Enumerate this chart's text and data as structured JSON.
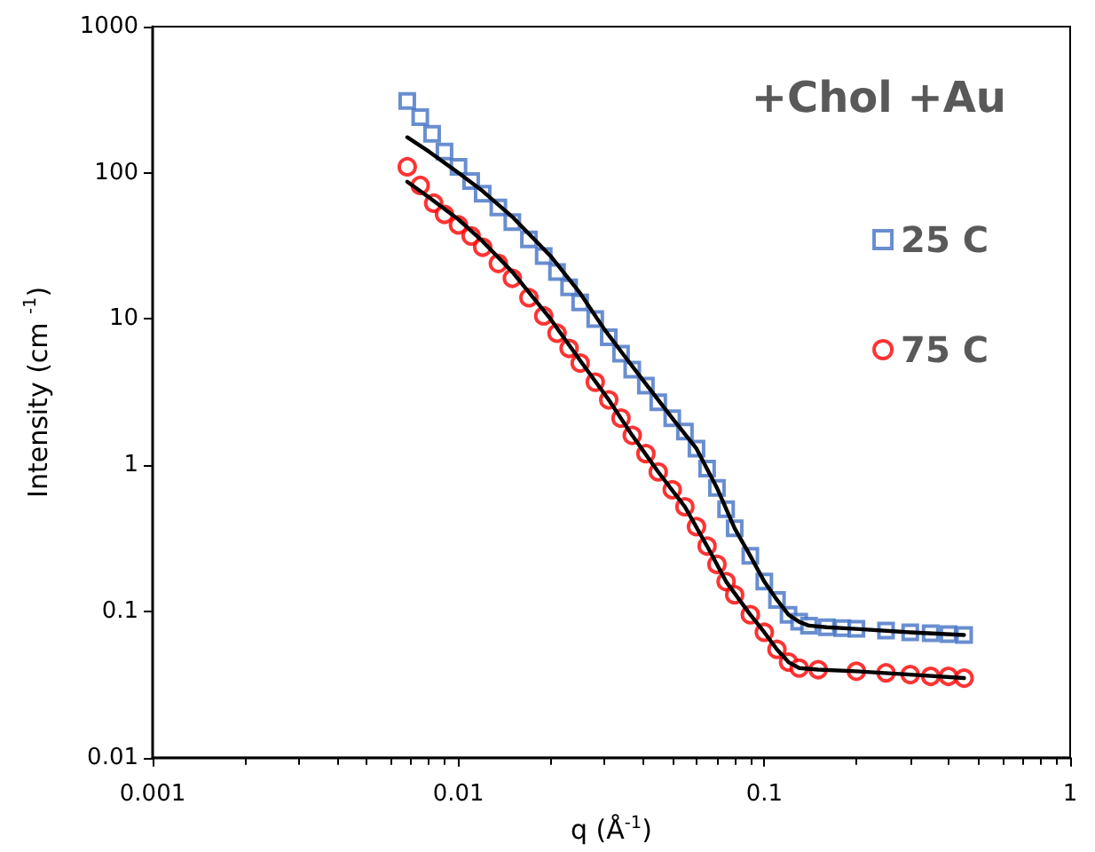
{
  "chart_data": {
    "type": "scatter",
    "xlabel": "q (Å$^{-1}$)",
    "ylabel": "Intensity (cm $^{-1}$)",
    "legend_title": "+Chol +Au",
    "log": "xy",
    "grid": false,
    "legend": "top right",
    "xlim": [
      0.001,
      1
    ],
    "xticks": [
      0.001,
      0.01,
      0.1,
      1
    ],
    "ylim": [
      0.01,
      1000
    ],
    "yticks": [
      0.01,
      0.1,
      1,
      10,
      100,
      1000
    ],
    "series": [
      {
        "name": "25 C",
        "marker": "square",
        "color": "#4472c4",
        "x": [
          0.0068,
          0.0075,
          0.0082,
          0.009,
          0.01,
          0.011,
          0.012,
          0.0135,
          0.015,
          0.017,
          0.019,
          0.021,
          0.023,
          0.025,
          0.028,
          0.031,
          0.034,
          0.037,
          0.041,
          0.045,
          0.05,
          0.055,
          0.06,
          0.065,
          0.07,
          0.075,
          0.08,
          0.09,
          0.1,
          0.11,
          0.12,
          0.13,
          0.14,
          0.16,
          0.18,
          0.2,
          0.25,
          0.3,
          0.35,
          0.4,
          0.45
        ],
        "values": [
          310,
          240,
          185,
          140,
          110,
          88,
          72,
          58,
          46,
          35,
          27,
          21,
          16.5,
          13,
          10,
          7.5,
          5.8,
          4.5,
          3.5,
          2.7,
          2.1,
          1.7,
          1.3,
          0.95,
          0.7,
          0.5,
          0.37,
          0.24,
          0.16,
          0.12,
          0.095,
          0.085,
          0.08,
          0.078,
          0.077,
          0.076,
          0.074,
          0.072,
          0.071,
          0.07,
          0.069
        ]
      },
      {
        "name": "75 C",
        "marker": "circle",
        "color": "#ff0000",
        "x": [
          0.0068,
          0.0075,
          0.0083,
          0.009,
          0.01,
          0.011,
          0.012,
          0.0135,
          0.015,
          0.017,
          0.019,
          0.021,
          0.023,
          0.025,
          0.028,
          0.031,
          0.034,
          0.037,
          0.041,
          0.045,
          0.05,
          0.055,
          0.06,
          0.065,
          0.07,
          0.075,
          0.08,
          0.09,
          0.1,
          0.11,
          0.12,
          0.13,
          0.15,
          0.2,
          0.25,
          0.3,
          0.35,
          0.4,
          0.45
        ],
        "values": [
          110,
          82,
          62,
          52,
          44,
          37,
          31,
          24,
          19,
          14,
          10.5,
          8,
          6.3,
          5,
          3.7,
          2.8,
          2.1,
          1.6,
          1.2,
          0.9,
          0.68,
          0.52,
          0.38,
          0.28,
          0.21,
          0.16,
          0.13,
          0.095,
          0.072,
          0.055,
          0.045,
          0.041,
          0.04,
          0.039,
          0.038,
          0.037,
          0.036,
          0.036,
          0.035
        ]
      },
      {
        "type": "line",
        "marker": "none",
        "line_style": "solid",
        "color": "#000000",
        "x": [
          0.0068,
          0.008,
          0.01,
          0.012,
          0.015,
          0.02,
          0.025,
          0.03,
          0.034,
          0.041,
          0.05,
          0.06,
          0.07,
          0.08,
          0.09,
          0.1,
          0.11,
          0.12,
          0.13,
          0.14,
          0.16,
          0.2,
          0.3,
          0.45
        ],
        "values": [
          175,
          140,
          100,
          75,
          50,
          27,
          15,
          8.5,
          6,
          3.6,
          2.1,
          1.3,
          0.7,
          0.37,
          0.24,
          0.16,
          0.12,
          0.095,
          0.085,
          0.08,
          0.078,
          0.076,
          0.072,
          0.069
        ]
      },
      {
        "type": "line",
        "marker": "none",
        "line_style": "solid",
        "color": "#000000",
        "x": [
          0.0068,
          0.008,
          0.01,
          0.012,
          0.015,
          0.02,
          0.025,
          0.031,
          0.037,
          0.045,
          0.055,
          0.065,
          0.075,
          0.09,
          0.1,
          0.11,
          0.12,
          0.13,
          0.15,
          0.2,
          0.3,
          0.45
        ],
        "values": [
          87,
          68,
          48,
          34,
          21,
          10,
          5.2,
          2.8,
          1.6,
          0.9,
          0.52,
          0.28,
          0.16,
          0.095,
          0.072,
          0.055,
          0.045,
          0.041,
          0.04,
          0.039,
          0.037,
          0.035
        ]
      }
    ]
  }
}
